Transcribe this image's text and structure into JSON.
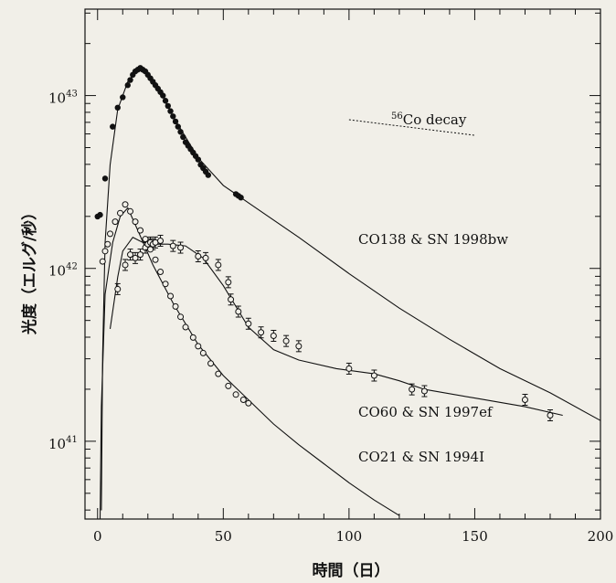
{
  "chart_data": {
    "type": "scatter",
    "title": "",
    "xlabel": "時間（日）",
    "ylabel": "光度（エルグ/秒）",
    "xlim": [
      -5,
      200
    ],
    "ylim_log10": [
      40.55,
      43.5
    ],
    "yscale": "log",
    "grid": false,
    "x_ticks": [
      0,
      50,
      100,
      150,
      200
    ],
    "y_ticks": [
      {
        "mantissa": "10",
        "exp": "41",
        "value_log10": 41
      },
      {
        "mantissa": "10",
        "exp": "42",
        "value_log10": 42
      },
      {
        "mantissa": "10",
        "exp": "43",
        "value_log10": 43
      }
    ],
    "colors": {
      "ink": "#111111",
      "paper": "#f1efe8"
    },
    "series": [
      {
        "label": "CO138 & SN 1998bw",
        "marker": "filled-circle",
        "points": [
          [
            0,
            42.3
          ],
          [
            1,
            42.31
          ],
          [
            3,
            42.52
          ],
          [
            6,
            42.82
          ],
          [
            8,
            42.93
          ],
          [
            10,
            42.99
          ],
          [
            12,
            43.06
          ],
          [
            13,
            43.09
          ],
          [
            14,
            43.12
          ],
          [
            15,
            43.14
          ],
          [
            16,
            43.15
          ],
          [
            17,
            43.16
          ],
          [
            18,
            43.15
          ],
          [
            19,
            43.14
          ],
          [
            20,
            43.12
          ],
          [
            21,
            43.1
          ],
          [
            22,
            43.08
          ],
          [
            23,
            43.06
          ],
          [
            24,
            43.04
          ],
          [
            25,
            43.02
          ],
          [
            26,
            43.0
          ],
          [
            27,
            42.97
          ],
          [
            28,
            42.94
          ],
          [
            29,
            42.91
          ],
          [
            30,
            42.88
          ],
          [
            31,
            42.85
          ],
          [
            32,
            42.82
          ],
          [
            33,
            42.79
          ],
          [
            34,
            42.76
          ],
          [
            35,
            42.73
          ],
          [
            36,
            42.71
          ],
          [
            37,
            42.69
          ],
          [
            38,
            42.67
          ],
          [
            39,
            42.65
          ],
          [
            40,
            42.63
          ],
          [
            41,
            42.6
          ],
          [
            42,
            42.58
          ],
          [
            43,
            42.56
          ],
          [
            44,
            42.54
          ],
          [
            55,
            42.43
          ],
          [
            56,
            42.42
          ],
          [
            57,
            42.41
          ]
        ],
        "model_curve": [
          [
            1.5,
            40.6
          ],
          [
            2,
            41.5
          ],
          [
            3,
            42.15
          ],
          [
            5,
            42.6
          ],
          [
            8,
            42.92
          ],
          [
            12,
            43.08
          ],
          [
            16,
            43.15
          ],
          [
            20,
            43.12
          ],
          [
            25,
            43.02
          ],
          [
            30,
            42.88
          ],
          [
            40,
            42.64
          ],
          [
            50,
            42.48
          ],
          [
            60,
            42.38
          ],
          [
            80,
            42.18
          ],
          [
            100,
            41.97
          ],
          [
            120,
            41.77
          ],
          [
            140,
            41.59
          ],
          [
            160,
            41.42
          ],
          [
            180,
            41.28
          ],
          [
            200,
            41.12
          ]
        ]
      },
      {
        "label": "CO60 & SN 1997ef",
        "marker": "open-circle-errorbar",
        "points": [
          [
            8,
            41.88
          ],
          [
            11,
            42.02
          ],
          [
            13,
            42.08
          ],
          [
            15,
            42.06
          ],
          [
            17,
            42.08
          ],
          [
            19,
            42.12
          ],
          [
            20,
            42.14
          ],
          [
            21,
            42.15
          ],
          [
            22,
            42.14
          ],
          [
            23,
            42.15
          ],
          [
            25,
            42.16
          ],
          [
            30,
            42.13
          ],
          [
            33,
            42.12
          ],
          [
            40,
            42.07
          ],
          [
            43,
            42.06
          ],
          [
            48,
            42.02
          ],
          [
            52,
            41.92
          ],
          [
            53,
            41.82
          ],
          [
            56,
            41.75
          ],
          [
            60,
            41.68
          ],
          [
            65,
            41.63
          ],
          [
            70,
            41.61
          ],
          [
            75,
            41.58
          ],
          [
            80,
            41.55
          ],
          [
            100,
            41.42
          ],
          [
            110,
            41.38
          ],
          [
            125,
            41.3
          ],
          [
            130,
            41.29
          ],
          [
            170,
            41.24
          ],
          [
            180,
            41.15
          ]
        ],
        "model_curve": [
          [
            5,
            41.65
          ],
          [
            8,
            41.95
          ],
          [
            10,
            42.1
          ],
          [
            14,
            42.18
          ],
          [
            18,
            42.15
          ],
          [
            22,
            42.14
          ],
          [
            28,
            42.14
          ],
          [
            35,
            42.13
          ],
          [
            42,
            42.06
          ],
          [
            50,
            41.9
          ],
          [
            60,
            41.66
          ],
          [
            70,
            41.53
          ],
          [
            80,
            41.47
          ],
          [
            95,
            41.42
          ],
          [
            110,
            41.39
          ],
          [
            120,
            41.35
          ],
          [
            130,
            41.3
          ],
          [
            150,
            41.25
          ],
          [
            170,
            41.2
          ],
          [
            185,
            41.15
          ]
        ]
      },
      {
        "label": "CO21 & SN 1994I",
        "marker": "open-circle",
        "points": [
          [
            2,
            42.04
          ],
          [
            3,
            42.1
          ],
          [
            4,
            42.14
          ],
          [
            5,
            42.2
          ],
          [
            7,
            42.27
          ],
          [
            9,
            42.32
          ],
          [
            11,
            42.37
          ],
          [
            13,
            42.33
          ],
          [
            15,
            42.27
          ],
          [
            17,
            42.22
          ],
          [
            19,
            42.17
          ],
          [
            21,
            42.11
          ],
          [
            23,
            42.05
          ],
          [
            25,
            41.98
          ],
          [
            27,
            41.91
          ],
          [
            29,
            41.84
          ],
          [
            31,
            41.78
          ],
          [
            33,
            41.72
          ],
          [
            35,
            41.66
          ],
          [
            38,
            41.6
          ],
          [
            40,
            41.55
          ],
          [
            42,
            41.51
          ],
          [
            45,
            41.45
          ],
          [
            48,
            41.39
          ],
          [
            52,
            41.32
          ],
          [
            55,
            41.27
          ],
          [
            58,
            41.24
          ],
          [
            60,
            41.22
          ]
        ],
        "model_curve": [
          [
            1,
            40.55
          ],
          [
            1.5,
            41.2
          ],
          [
            3,
            41.85
          ],
          [
            6,
            42.15
          ],
          [
            9,
            42.3
          ],
          [
            12,
            42.35
          ],
          [
            16,
            42.22
          ],
          [
            22,
            42.02
          ],
          [
            30,
            41.8
          ],
          [
            40,
            41.56
          ],
          [
            50,
            41.38
          ],
          [
            60,
            41.24
          ],
          [
            70,
            41.1
          ],
          [
            80,
            40.98
          ],
          [
            90,
            40.87
          ],
          [
            100,
            40.76
          ],
          [
            110,
            40.66
          ],
          [
            120,
            40.57
          ]
        ]
      }
    ],
    "annotations": [
      {
        "label": "Co decay",
        "superscript": "56"
      },
      {
        "label": "CO138 & SN 1998bw"
      },
      {
        "label": "CO60 & SN 1997ef"
      },
      {
        "label": "CO21 & SN 1994I"
      }
    ],
    "decay_line": [
      [
        100,
        42.86
      ],
      [
        150,
        42.77
      ]
    ]
  }
}
